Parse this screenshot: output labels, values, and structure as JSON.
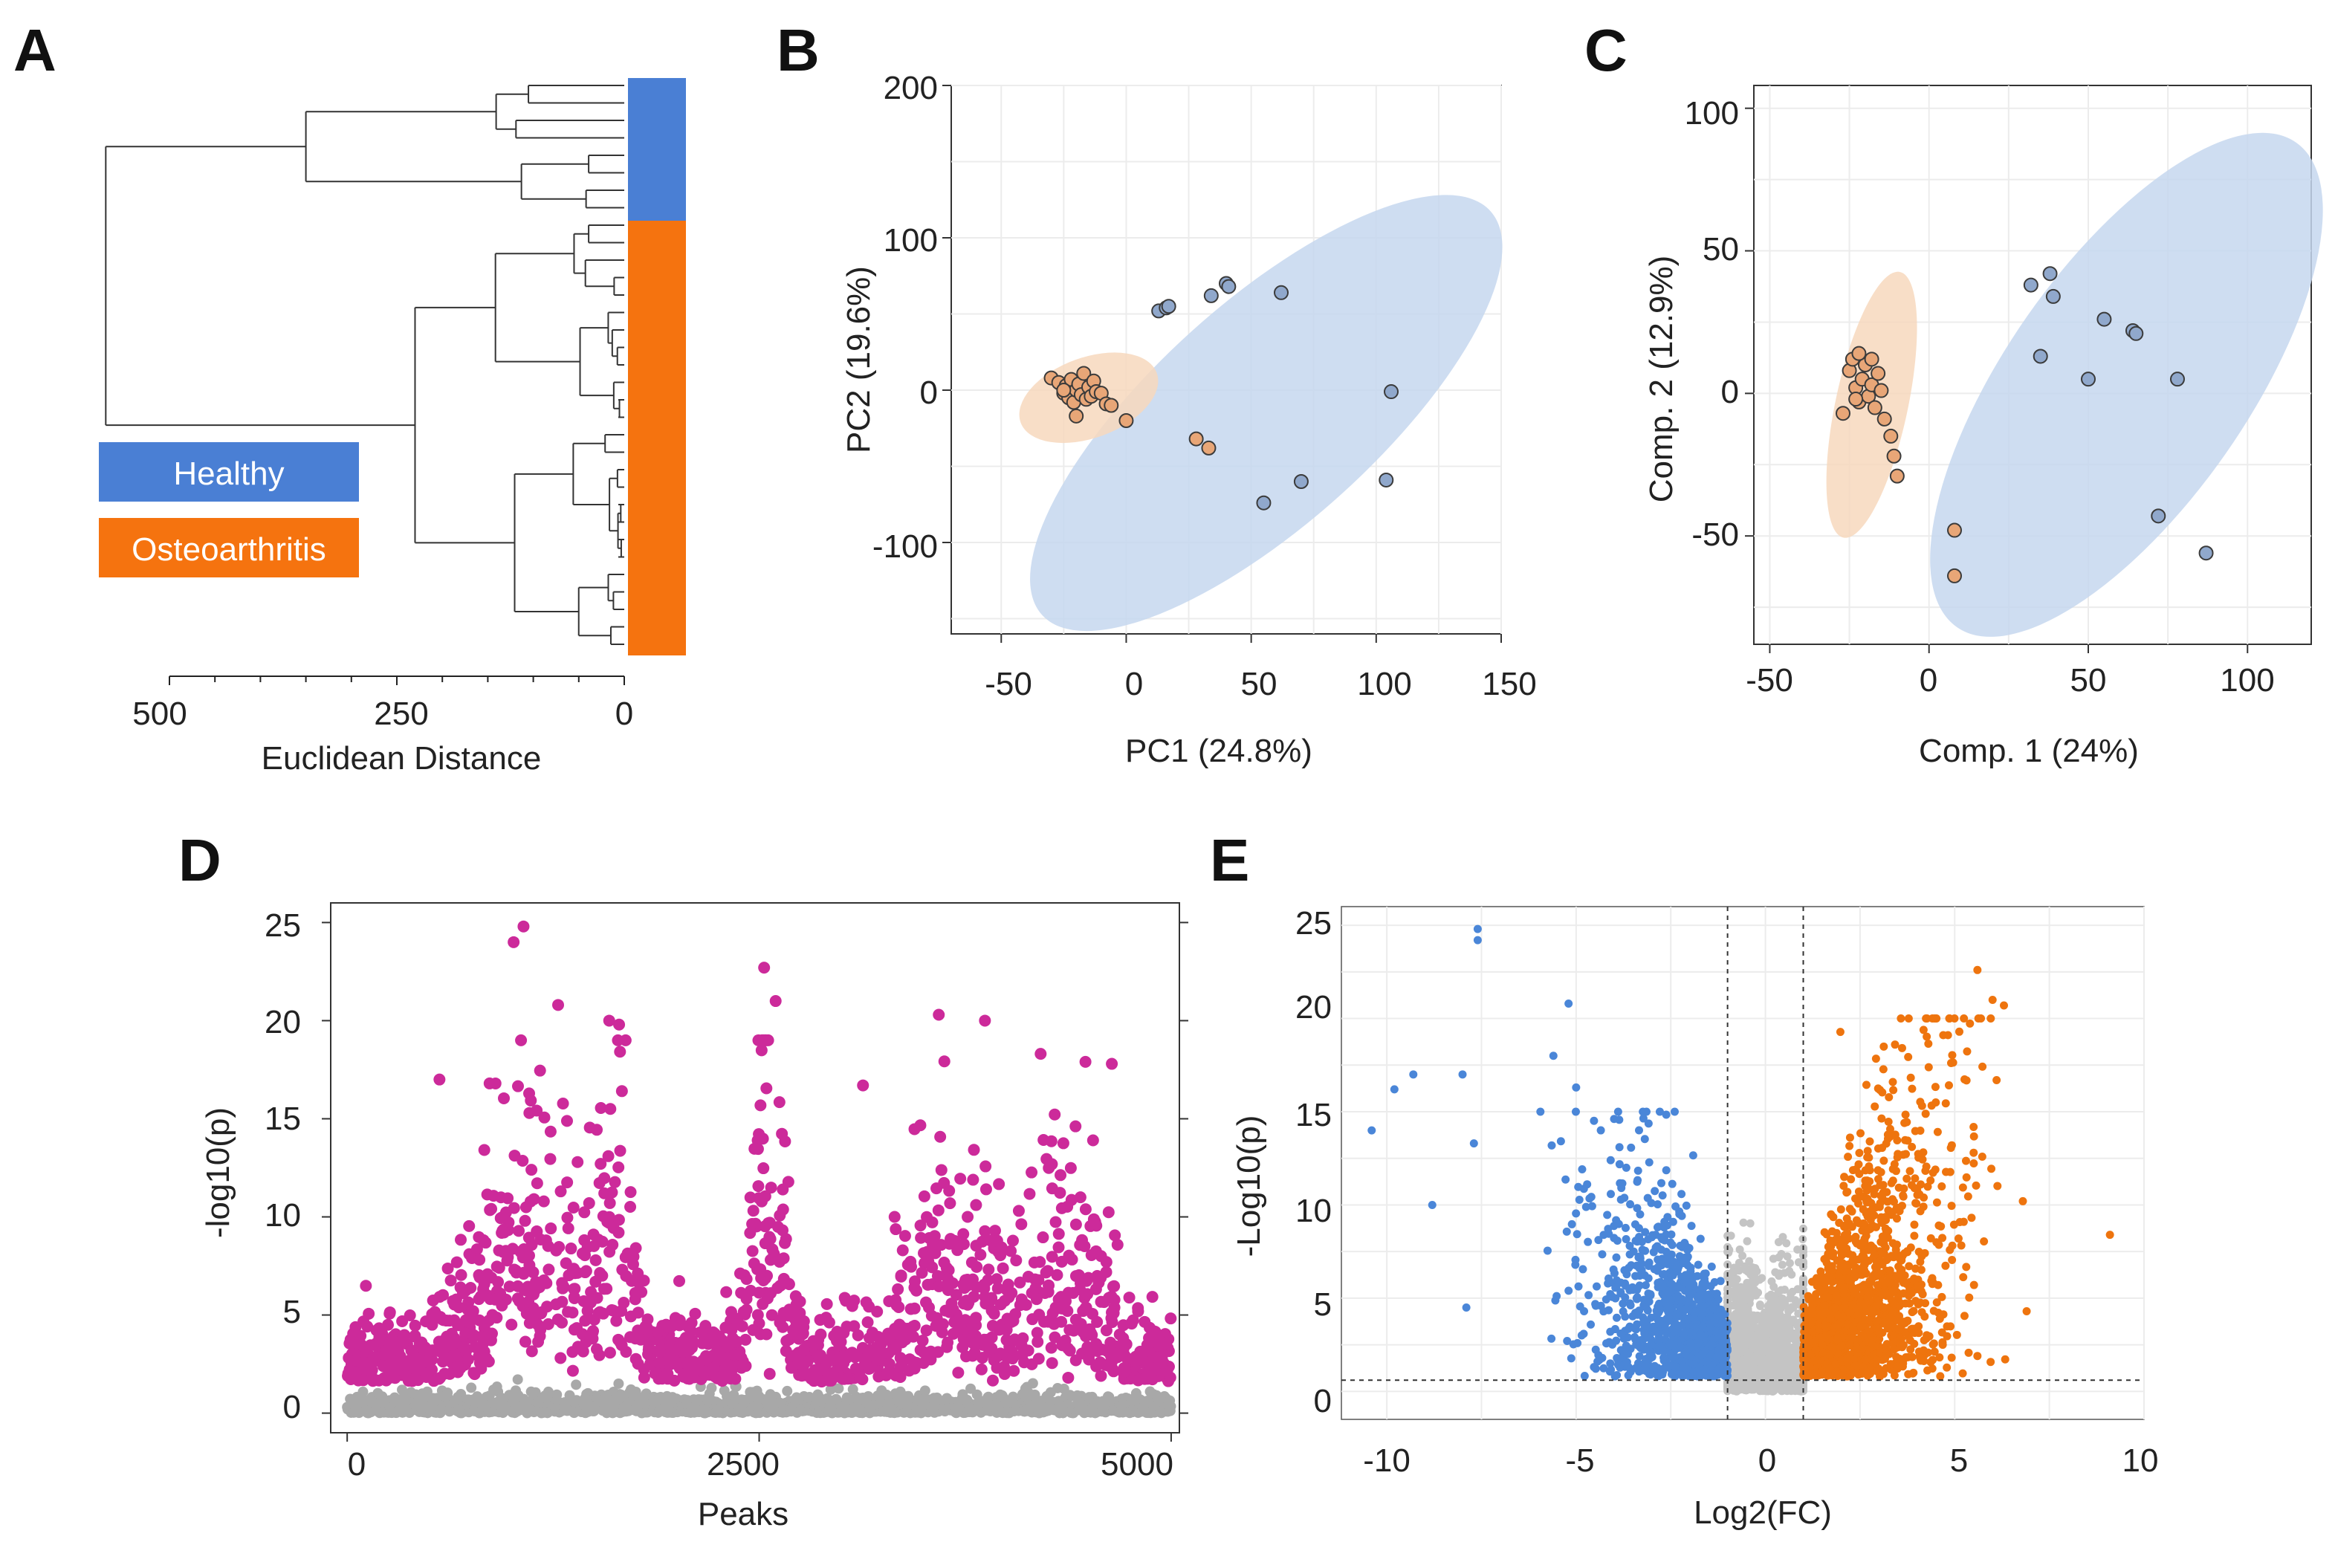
{
  "colors": {
    "healthy": "#4a7fd4",
    "oa": "#f5730f",
    "pca_healthy_fill": "#c6d7ef",
    "pca_healthy_point": "#90a8cc",
    "pca_oa_fill": "#f7d8bd",
    "pca_oa_point": "#e8a677",
    "manhattan_sig": "#cc2a9a",
    "manhattan_ns": "#a8a8a8",
    "volcano_down": "#4a86d8",
    "volcano_up": "#ee740e",
    "volcano_ns": "#c4c4c4"
  },
  "chart_data": [
    {
      "panel": "A",
      "type": "dendrogram",
      "xlabel": "Euclidean Distance",
      "xticks": [
        "500",
        "250",
        "0"
      ],
      "xlim": [
        0,
        500
      ],
      "legend": {
        "position": "left-middle",
        "items": [
          "Healthy",
          "Osteoarthritis"
        ]
      },
      "groups": [
        {
          "name": "Healthy",
          "count": 8
        },
        {
          "name": "Osteoarthritis",
          "count": 25
        }
      ],
      "root_height": 570,
      "healthy_cluster_height": 350,
      "oa_cluster_height": 230
    },
    {
      "panel": "B",
      "type": "scatter",
      "title": "",
      "xlabel": "PC1 (24.8%)",
      "ylabel": "PC2 (19.6%)",
      "xlim": [
        -70,
        150
      ],
      "ylim": [
        -160,
        200
      ],
      "xticks": [
        "-50",
        "0",
        "50",
        "100",
        "150"
      ],
      "yticks": [
        "200",
        "100",
        "0",
        "-100"
      ],
      "series": [
        {
          "name": "Healthy",
          "points": [
            [
              13,
              52
            ],
            [
              16,
              54
            ],
            [
              17,
              55
            ],
            [
              34,
              62
            ],
            [
              40,
              70
            ],
            [
              41,
              68
            ],
            [
              62,
              64
            ],
            [
              106,
              -1
            ],
            [
              55,
              -74
            ],
            [
              70,
              -60
            ],
            [
              104,
              -59
            ]
          ],
          "ellipse": {
            "cx": 56,
            "cy": -15,
            "rx": 150,
            "ry": 55,
            "angle": -42
          }
        },
        {
          "name": "Osteoarthritis",
          "points": [
            [
              -30,
              8
            ],
            [
              -27,
              5
            ],
            [
              -25,
              -2
            ],
            [
              -24,
              3
            ],
            [
              -23,
              -5
            ],
            [
              -22,
              7
            ],
            [
              -21,
              -8
            ],
            [
              -20,
              0
            ],
            [
              -19,
              4
            ],
            [
              -18,
              -3
            ],
            [
              -17,
              11
            ],
            [
              -16,
              -6
            ],
            [
              -15,
              2
            ],
            [
              -14,
              -4
            ],
            [
              -13,
              6
            ],
            [
              -12,
              -1
            ],
            [
              -10,
              -2
            ],
            [
              -8,
              -9
            ],
            [
              -6,
              -10
            ],
            [
              0,
              -20
            ],
            [
              28,
              -32
            ],
            [
              33,
              -38
            ],
            [
              -20,
              -17
            ],
            [
              -25,
              0
            ]
          ],
          "ellipse": {
            "cx": -15,
            "cy": -5,
            "rx": 36,
            "ry": 20,
            "angle": -20
          }
        }
      ]
    },
    {
      "panel": "C",
      "type": "scatter",
      "xlabel": "Comp. 1 (24%)",
      "ylabel": "Comp. 2 (12.9%)",
      "xlim": [
        -55,
        120
      ],
      "ylim": [
        -88,
        108
      ],
      "xticks": [
        "-50",
        "0",
        "50",
        "100"
      ],
      "yticks": [
        "100",
        "50",
        "0",
        "-50"
      ],
      "series": [
        {
          "name": "Healthy",
          "points": [
            [
              32,
              38
            ],
            [
              38,
              42
            ],
            [
              39,
              34
            ],
            [
              35,
              13
            ],
            [
              50,
              5
            ],
            [
              55,
              26
            ],
            [
              64,
              22
            ],
            [
              65,
              21
            ],
            [
              78,
              5
            ],
            [
              72,
              -43
            ],
            [
              87,
              -56
            ]
          ],
          "ellipse": {
            "cx": 62,
            "cy": 3,
            "rx": 98,
            "ry": 40,
            "angle": -55
          }
        },
        {
          "name": "Osteoarthritis",
          "points": [
            [
              -27,
              -7
            ],
            [
              -25,
              8
            ],
            [
              -24,
              12
            ],
            [
              -23,
              2
            ],
            [
              -22,
              -3
            ],
            [
              -21,
              5
            ],
            [
              -20,
              10
            ],
            [
              -19,
              -1
            ],
            [
              -18,
              3
            ],
            [
              -17,
              -5
            ],
            [
              -16,
              7
            ],
            [
              -15,
              1
            ],
            [
              -14,
              -9
            ],
            [
              -12,
              -15
            ],
            [
              -11,
              -22
            ],
            [
              -10,
              -29
            ],
            [
              -22,
              14
            ],
            [
              -18,
              12
            ],
            [
              -23,
              -2
            ],
            [
              8,
              -48
            ],
            [
              8,
              -64
            ]
          ],
          "ellipse": {
            "cx": -18,
            "cy": -4,
            "rx": 45,
            "ry": 12,
            "angle": -78
          }
        }
      ]
    },
    {
      "panel": "D",
      "type": "scatter",
      "subtype": "manhattan",
      "xlabel": "Peaks",
      "ylabel": "-log10(p)",
      "xlim": [
        -100,
        5050
      ],
      "ylim": [
        -1,
        26
      ],
      "xticks": [
        "0",
        "2500",
        "5000"
      ],
      "yticks": [
        "25",
        "20",
        "15",
        "10",
        "5",
        "0"
      ],
      "significance_threshold": 1.6,
      "n_points": 5000,
      "top_points": [
        [
          1010,
          24
        ],
        [
          1070,
          24.8
        ],
        [
          1280,
          20.8
        ],
        [
          1590,
          20
        ],
        [
          1650,
          19.8
        ],
        [
          2530,
          22.7
        ],
        [
          2600,
          21
        ],
        [
          3590,
          20.3
        ],
        [
          3870,
          20
        ],
        [
          4480,
          17.9
        ],
        [
          4640,
          17.8
        ],
        [
          560,
          17
        ],
        [
          900,
          16.8
        ],
        [
          3130,
          16.7
        ]
      ]
    },
    {
      "panel": "E",
      "type": "scatter",
      "subtype": "volcano",
      "xlabel": "Log2(FC)",
      "ylabel": "-Log10(p)",
      "xlim": [
        -11.2,
        10
      ],
      "ylim": [
        -1.5,
        26
      ],
      "xticks": [
        "-10",
        "-5",
        "0",
        "5",
        "10"
      ],
      "yticks": [
        "25",
        "20",
        "15",
        "10",
        "5",
        "0"
      ],
      "fc_thresholds": [
        -1,
        1
      ],
      "p_threshold": 0.6,
      "extreme_points": [
        [
          -7.6,
          24.2
        ],
        [
          -7.6,
          24.8
        ],
        [
          -5.2,
          20.8
        ],
        [
          -10.4,
          14
        ],
        [
          -9.8,
          16.2
        ],
        [
          -9.3,
          17
        ],
        [
          -8.0,
          17
        ],
        [
          -8.8,
          10
        ],
        [
          -7.7,
          13.3
        ],
        [
          -7.9,
          4.5
        ],
        [
          -5.6,
          18
        ],
        [
          -5.0,
          16.3
        ],
        [
          5.6,
          22.6
        ],
        [
          6.0,
          21
        ],
        [
          6.3,
          20.7
        ],
        [
          9.1,
          8.4
        ],
        [
          6.8,
          10.2
        ],
        [
          6.9,
          4.3
        ],
        [
          5.6,
          1.9
        ],
        [
          4.5,
          15.5
        ],
        [
          5.5,
          12.8
        ]
      ]
    }
  ]
}
